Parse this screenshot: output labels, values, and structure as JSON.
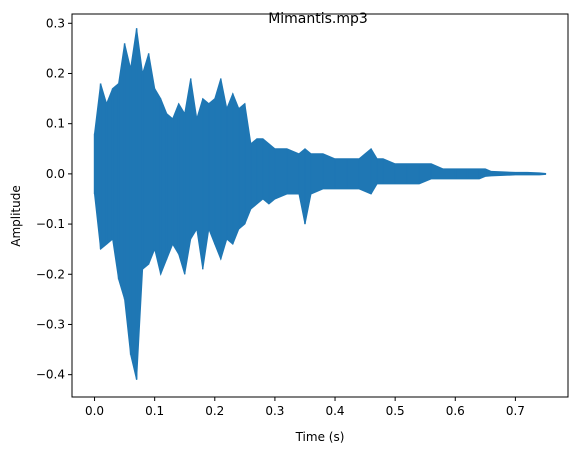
{
  "chart_data": {
    "type": "line",
    "title": "Mimantis.mp3",
    "xlabel": "Time (s)",
    "ylabel": "Amplitude",
    "xlim": [
      -0.0375,
      0.7875
    ],
    "ylim": [
      -0.4445,
      0.3185
    ],
    "x_ticks": [
      0.0,
      0.1,
      0.2,
      0.3,
      0.4,
      0.5,
      0.6,
      0.7
    ],
    "x_tick_labels": [
      "0.0",
      "0.1",
      "0.2",
      "0.3",
      "0.4",
      "0.5",
      "0.6",
      "0.7"
    ],
    "y_ticks": [
      -0.4,
      -0.3,
      -0.2,
      -0.1,
      0.0,
      0.1,
      0.2,
      0.3
    ],
    "y_tick_labels": [
      "−0.4",
      "−0.3",
      "−0.2",
      "−0.1",
      "0.0",
      "0.1",
      "0.2",
      "0.3"
    ],
    "grid": false,
    "line_color": "#1f77b4",
    "series": [
      {
        "x": [
          0.0,
          0.01,
          0.02,
          0.03,
          0.04,
          0.05,
          0.06,
          0.07,
          0.08,
          0.09,
          0.1,
          0.11,
          0.12,
          0.13,
          0.14,
          0.15,
          0.16,
          0.17,
          0.18,
          0.19,
          0.2,
          0.21,
          0.22,
          0.23,
          0.24,
          0.25,
          0.26,
          0.27,
          0.28,
          0.29,
          0.3,
          0.32,
          0.34,
          0.35,
          0.36,
          0.38,
          0.4,
          0.42,
          0.44,
          0.46,
          0.47,
          0.48,
          0.5,
          0.52,
          0.54,
          0.56,
          0.58,
          0.6,
          0.62,
          0.64,
          0.65,
          0.66,
          0.68,
          0.7,
          0.72,
          0.74,
          0.75
        ],
        "upper": [
          0.08,
          0.18,
          0.14,
          0.17,
          0.18,
          0.26,
          0.21,
          0.29,
          0.2,
          0.24,
          0.17,
          0.15,
          0.12,
          0.11,
          0.14,
          0.12,
          0.19,
          0.11,
          0.15,
          0.14,
          0.15,
          0.19,
          0.13,
          0.16,
          0.13,
          0.14,
          0.06,
          0.07,
          0.07,
          0.06,
          0.05,
          0.05,
          0.04,
          0.05,
          0.04,
          0.04,
          0.03,
          0.03,
          0.03,
          0.05,
          0.03,
          0.03,
          0.02,
          0.02,
          0.02,
          0.02,
          0.01,
          0.01,
          0.01,
          0.01,
          0.01,
          0.005,
          0.004,
          0.003,
          0.003,
          0.002,
          0.001
        ],
        "lower": [
          -0.04,
          -0.15,
          -0.14,
          -0.13,
          -0.21,
          -0.25,
          -0.36,
          -0.41,
          -0.19,
          -0.18,
          -0.15,
          -0.2,
          -0.17,
          -0.14,
          -0.16,
          -0.2,
          -0.13,
          -0.11,
          -0.19,
          -0.11,
          -0.14,
          -0.17,
          -0.13,
          -0.14,
          -0.11,
          -0.1,
          -0.07,
          -0.06,
          -0.05,
          -0.06,
          -0.05,
          -0.04,
          -0.04,
          -0.1,
          -0.04,
          -0.03,
          -0.03,
          -0.03,
          -0.03,
          -0.04,
          -0.02,
          -0.02,
          -0.02,
          -0.02,
          -0.02,
          -0.01,
          -0.01,
          -0.01,
          -0.01,
          -0.01,
          -0.005,
          -0.004,
          -0.003,
          -0.002,
          -0.002,
          -0.002,
          -0.001
        ]
      }
    ]
  }
}
